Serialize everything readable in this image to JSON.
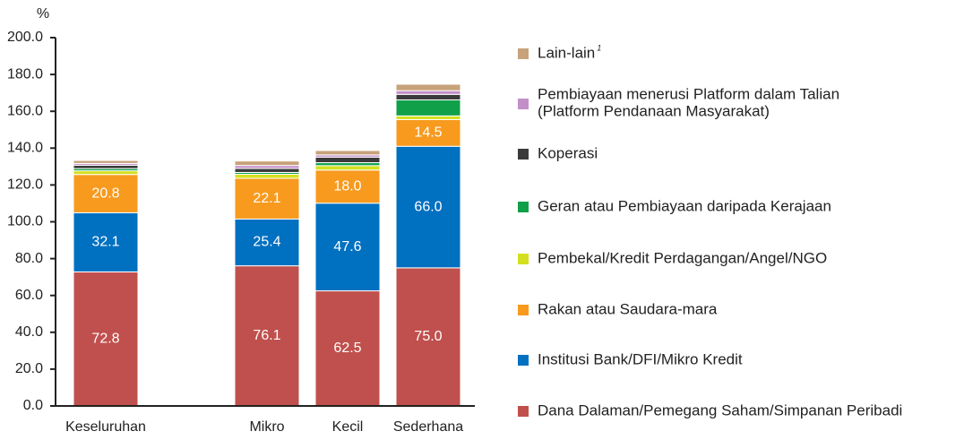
{
  "chart_data": {
    "type": "stacked_bar",
    "ylabel": "%",
    "categories": [
      "Keseluruhan",
      null,
      "Mikro",
      "Kecil",
      "Sederhana"
    ],
    "ylim": [
      0,
      200
    ],
    "yticks": [
      {
        "value": 0,
        "label": "0.0"
      },
      {
        "value": 20,
        "label": "20.0"
      },
      {
        "value": 40,
        "label": "40.0"
      },
      {
        "value": 60,
        "label": "60.0"
      },
      {
        "value": 80,
        "label": "80.0"
      },
      {
        "value": 100,
        "label": "100.0"
      },
      {
        "value": 120,
        "label": "120.0"
      },
      {
        "value": 140,
        "label": "140.0"
      },
      {
        "value": 160,
        "label": "160.0"
      },
      {
        "value": 180,
        "label": "180.0"
      },
      {
        "value": 200,
        "label": "200.0"
      }
    ],
    "grid": false,
    "series": [
      {
        "name": "Dana Dalaman/Pemegang Saham/Simpanan Peribadi",
        "color": "#c0504d",
        "values": [
          72.8,
          null,
          76.1,
          62.5,
          75.0
        ],
        "value_labels": [
          "72.8",
          null,
          "76.1",
          "62.5",
          "75.0"
        ]
      },
      {
        "name": "Institusi Bank/DFI/Mikro Kredit",
        "color": "#0070c0",
        "values": [
          32.1,
          null,
          25.4,
          47.6,
          66.0
        ],
        "value_labels": [
          "32.1",
          null,
          "25.4",
          "47.6",
          "66.0"
        ]
      },
      {
        "name": "Rakan atau Saudara-mara",
        "color": "#f79a1e",
        "values": [
          20.8,
          null,
          22.1,
          18.0,
          14.5
        ],
        "value_labels": [
          "20.8",
          null,
          "22.1",
          "18.0",
          "14.5"
        ]
      },
      {
        "name": "Pembekal/Kredit Perdagangan/Angel/NGO",
        "color": "#d4e01f",
        "values": [
          2.0,
          null,
          2.2,
          2.4,
          2.0
        ]
      },
      {
        "name": "Geran atau Pembiayaan daripada Kerajaan",
        "color": "#10a04a",
        "values": [
          1.2,
          null,
          1.0,
          1.6,
          8.7
        ]
      },
      {
        "name": "Koperasi",
        "color": "#3a3a3a",
        "values": [
          1.8,
          null,
          2.2,
          3.0,
          3.0
        ]
      },
      {
        "name": "Pembiayaan menerusi Platform dalam Talian\n(Platform Pendanaan Masyarakat)",
        "color": "#c38fc9",
        "values": [
          1.0,
          null,
          1.6,
          1.2,
          2.0
        ]
      },
      {
        "name": "Lain-lain",
        "footnote": "1",
        "color": "#c7a27a",
        "values": [
          1.6,
          null,
          2.4,
          2.4,
          3.5
        ]
      }
    ]
  }
}
